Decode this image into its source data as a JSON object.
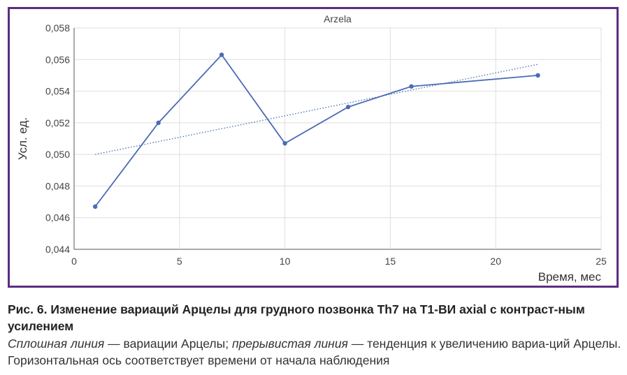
{
  "chart_data": {
    "type": "line",
    "title": "Arzela",
    "xlabel": "Время, мес",
    "ylabel": "Усл. ед.",
    "xlim": [
      0,
      25
    ],
    "ylim": [
      0.044,
      0.058
    ],
    "x_ticks": [
      "0",
      "5",
      "10",
      "15",
      "20",
      "25"
    ],
    "y_ticks": [
      "0,044",
      "0,046",
      "0,048",
      "0,050",
      "0,052",
      "0,054",
      "0,056",
      "0,058"
    ],
    "grid": true,
    "series": [
      {
        "style": "solid-with-markers",
        "color": "#4a6bb5",
        "points": [
          [
            1,
            0.0467
          ],
          [
            4,
            0.052
          ],
          [
            7,
            0.0563
          ],
          [
            10,
            0.0507
          ],
          [
            13,
            0.053
          ],
          [
            16,
            0.0543
          ],
          [
            22,
            0.055
          ]
        ]
      },
      {
        "style": "dotted-trend",
        "color": "#4a6bb5",
        "points": [
          [
            1,
            0.05
          ],
          [
            22,
            0.0557
          ]
        ]
      }
    ]
  },
  "caption": {
    "title": "Рис. 6. Изменение вариаций Арцелы для грудного позвонка Th7 на T1-ВИ axial с контраст-ным усилением",
    "solid_label": "Сплошная линия",
    "solid_desc": " — вариации Арцелы; ",
    "dashed_label": "прерывистая линия",
    "rest": " — тенденция к увеличению вариа-ций Арцелы. Горизонтальная ось соответствует времени от начала наблюдения"
  }
}
